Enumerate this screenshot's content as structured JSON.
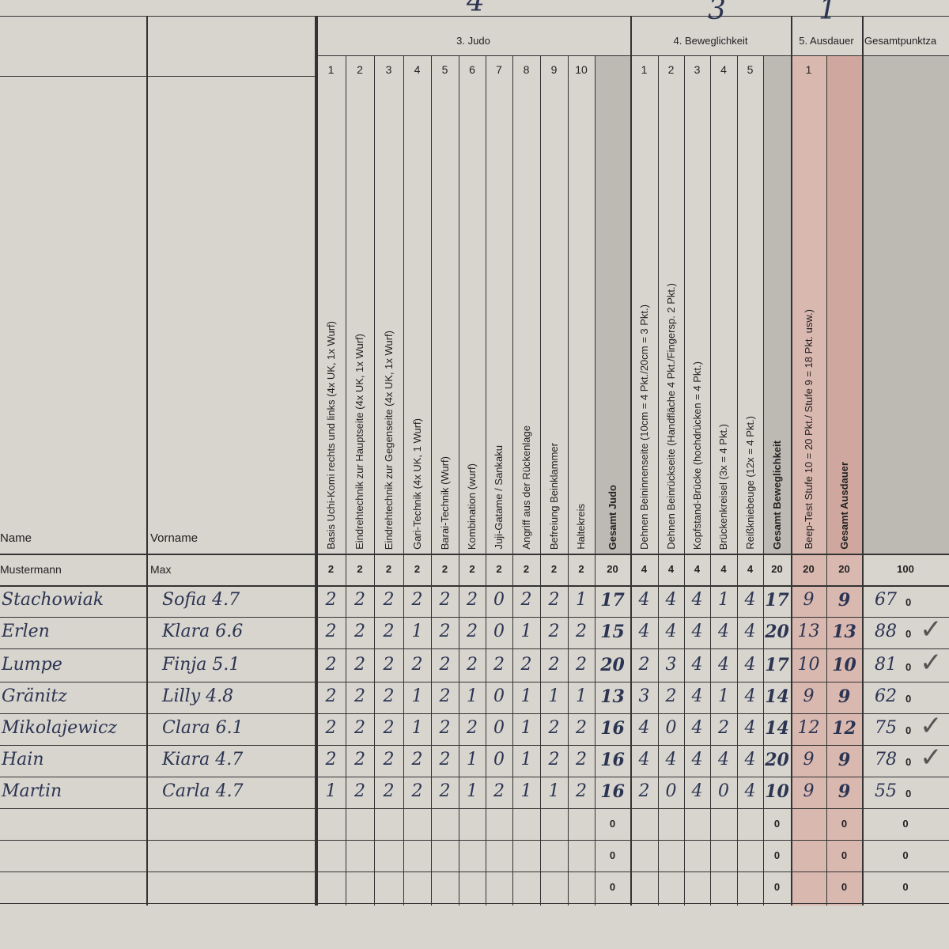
{
  "top_marks": [
    "4",
    "3",
    "1"
  ],
  "name_header": "Name",
  "vorname_header": "Vorname",
  "example": {
    "name": "Mustermann",
    "vorname": "Max"
  },
  "sections": [
    {
      "title": "3. Judo",
      "columns": [
        {
          "number": 1,
          "label": "Basis Uchi-Komi rechts und links (4x UK, 1x Wurf)",
          "max": 2
        },
        {
          "number": 2,
          "label": "Eindrehtechnik zur Hauptseite (4x UK, 1x Wurf)",
          "max": 2
        },
        {
          "number": 3,
          "label": "Eindrehtechnik zur Gegenseite (4x UK, 1x Wurf)",
          "max": 2
        },
        {
          "number": 4,
          "label": "Gari-Technik (4x UK, 1 Wurf)",
          "max": 2
        },
        {
          "number": 5,
          "label": "Barai-Technik (Wurf)",
          "max": 2
        },
        {
          "number": 6,
          "label": "Kombination (wurf)",
          "max": 2
        },
        {
          "number": 7,
          "label": "Juji-Gatame / Sankaku",
          "max": 2
        },
        {
          "number": 8,
          "label": "Angriff aus der Rückenlage",
          "max": 2
        },
        {
          "number": 9,
          "label": "Befreiung Beinklammer",
          "max": 2
        },
        {
          "number": 10,
          "label": "Haltekreis",
          "max": 2
        }
      ],
      "total": {
        "label": "Gesamt Judo",
        "max": 20
      }
    },
    {
      "title": "4. Beweglichkeit",
      "columns": [
        {
          "number": 1,
          "label": "Dehnen Beininnenseite (10cm = 4 Pkt./20cm = 3 Pkt.)",
          "max": 4
        },
        {
          "number": 2,
          "label": "Dehnen Beinrückseite (Handfläche 4 Pkt./Fingersp. 2 Pkt.)",
          "max": 4
        },
        {
          "number": 3,
          "label": "Kopfstand-Brücke (hochdrücken = 4 Pkt.)",
          "max": 4
        },
        {
          "number": 4,
          "label": "Brückenkreisel (3x = 4 Pkt.)",
          "max": 4
        },
        {
          "number": 5,
          "label": "Reißkniebeuge (12x = 4 Pkt.)",
          "max": 4
        }
      ],
      "total": {
        "label": "Gesamt Beweglichkeit",
        "max": 20
      }
    },
    {
      "title": "5. Ausdauer",
      "columns": [
        {
          "number": 1,
          "label": "Beep-Test Stufe 10 = 20 Pkt./ Stufe 9 = 18 Pkt. usw.)",
          "max": 20
        }
      ],
      "total": {
        "label": "Gesamt Ausdauer",
        "max": 20
      }
    }
  ],
  "grand_total": {
    "title": "Gesamtpunktza",
    "max": 100
  },
  "rows": [
    {
      "name": "Stachowiak",
      "vorname": "Sofia 4.7",
      "scores": [
        [
          2,
          2,
          2,
          2,
          2,
          2,
          0,
          2,
          2,
          1
        ],
        [
          4,
          4,
          4,
          1,
          4
        ],
        [
          9
        ]
      ],
      "totals": [
        17,
        17,
        9
      ],
      "total": 67,
      "note": "0"
    },
    {
      "name": "Erlen",
      "vorname": "Klara 6.6",
      "scores": [
        [
          2,
          2,
          2,
          1,
          2,
          2,
          0,
          1,
          2,
          2
        ],
        [
          4,
          4,
          4,
          4,
          4
        ],
        [
          13
        ]
      ],
      "totals": [
        15,
        20,
        13
      ],
      "total": 88,
      "note": "0",
      "check": "✓"
    },
    {
      "name": "Lumpe",
      "vorname": "Finja 5.1",
      "scores": [
        [
          2,
          2,
          2,
          2,
          2,
          2,
          2,
          2,
          2,
          2
        ],
        [
          2,
          3,
          4,
          4,
          4
        ],
        [
          10
        ]
      ],
      "totals": [
        20,
        17,
        10
      ],
      "total": 81,
      "note": "0",
      "check": "✓"
    },
    {
      "name": "Gränitz",
      "vorname": "Lilly 4.8",
      "scores": [
        [
          2,
          2,
          2,
          1,
          2,
          1,
          0,
          1,
          1,
          1
        ],
        [
          3,
          2,
          4,
          1,
          4
        ],
        [
          9
        ]
      ],
      "totals": [
        13,
        14,
        9
      ],
      "total": 62,
      "note": "0"
    },
    {
      "name": "Mikolajewicz",
      "vorname": "Clara 6.1",
      "scores": [
        [
          2,
          2,
          2,
          1,
          2,
          2,
          0,
          1,
          2,
          2
        ],
        [
          4,
          0,
          4,
          2,
          4
        ],
        [
          12
        ]
      ],
      "totals": [
        16,
        14,
        12
      ],
      "total": 75,
      "note": "0",
      "check": "✓"
    },
    {
      "name": "Hain",
      "vorname": "Kiara 4.7",
      "scores": [
        [
          2,
          2,
          2,
          2,
          2,
          1,
          0,
          1,
          2,
          2
        ],
        [
          4,
          4,
          4,
          4,
          4
        ],
        [
          9
        ]
      ],
      "totals": [
        16,
        20,
        9
      ],
      "total": 78,
      "note": "0",
      "check": "✓"
    },
    {
      "name": "Martin",
      "vorname": "Carla 4.7",
      "scores": [
        [
          1,
          2,
          2,
          2,
          2,
          1,
          2,
          1,
          1,
          2
        ],
        [
          2,
          0,
          4,
          0,
          4
        ],
        [
          9
        ]
      ],
      "totals": [
        16,
        10,
        9
      ],
      "total": 55,
      "note": "0"
    },
    {
      "totals": [
        0,
        0,
        0
      ],
      "total": 0
    },
    {
      "totals": [
        0,
        0,
        0
      ],
      "total": 0
    },
    {
      "totals": [
        0,
        0,
        0
      ],
      "total": 0
    }
  ]
}
